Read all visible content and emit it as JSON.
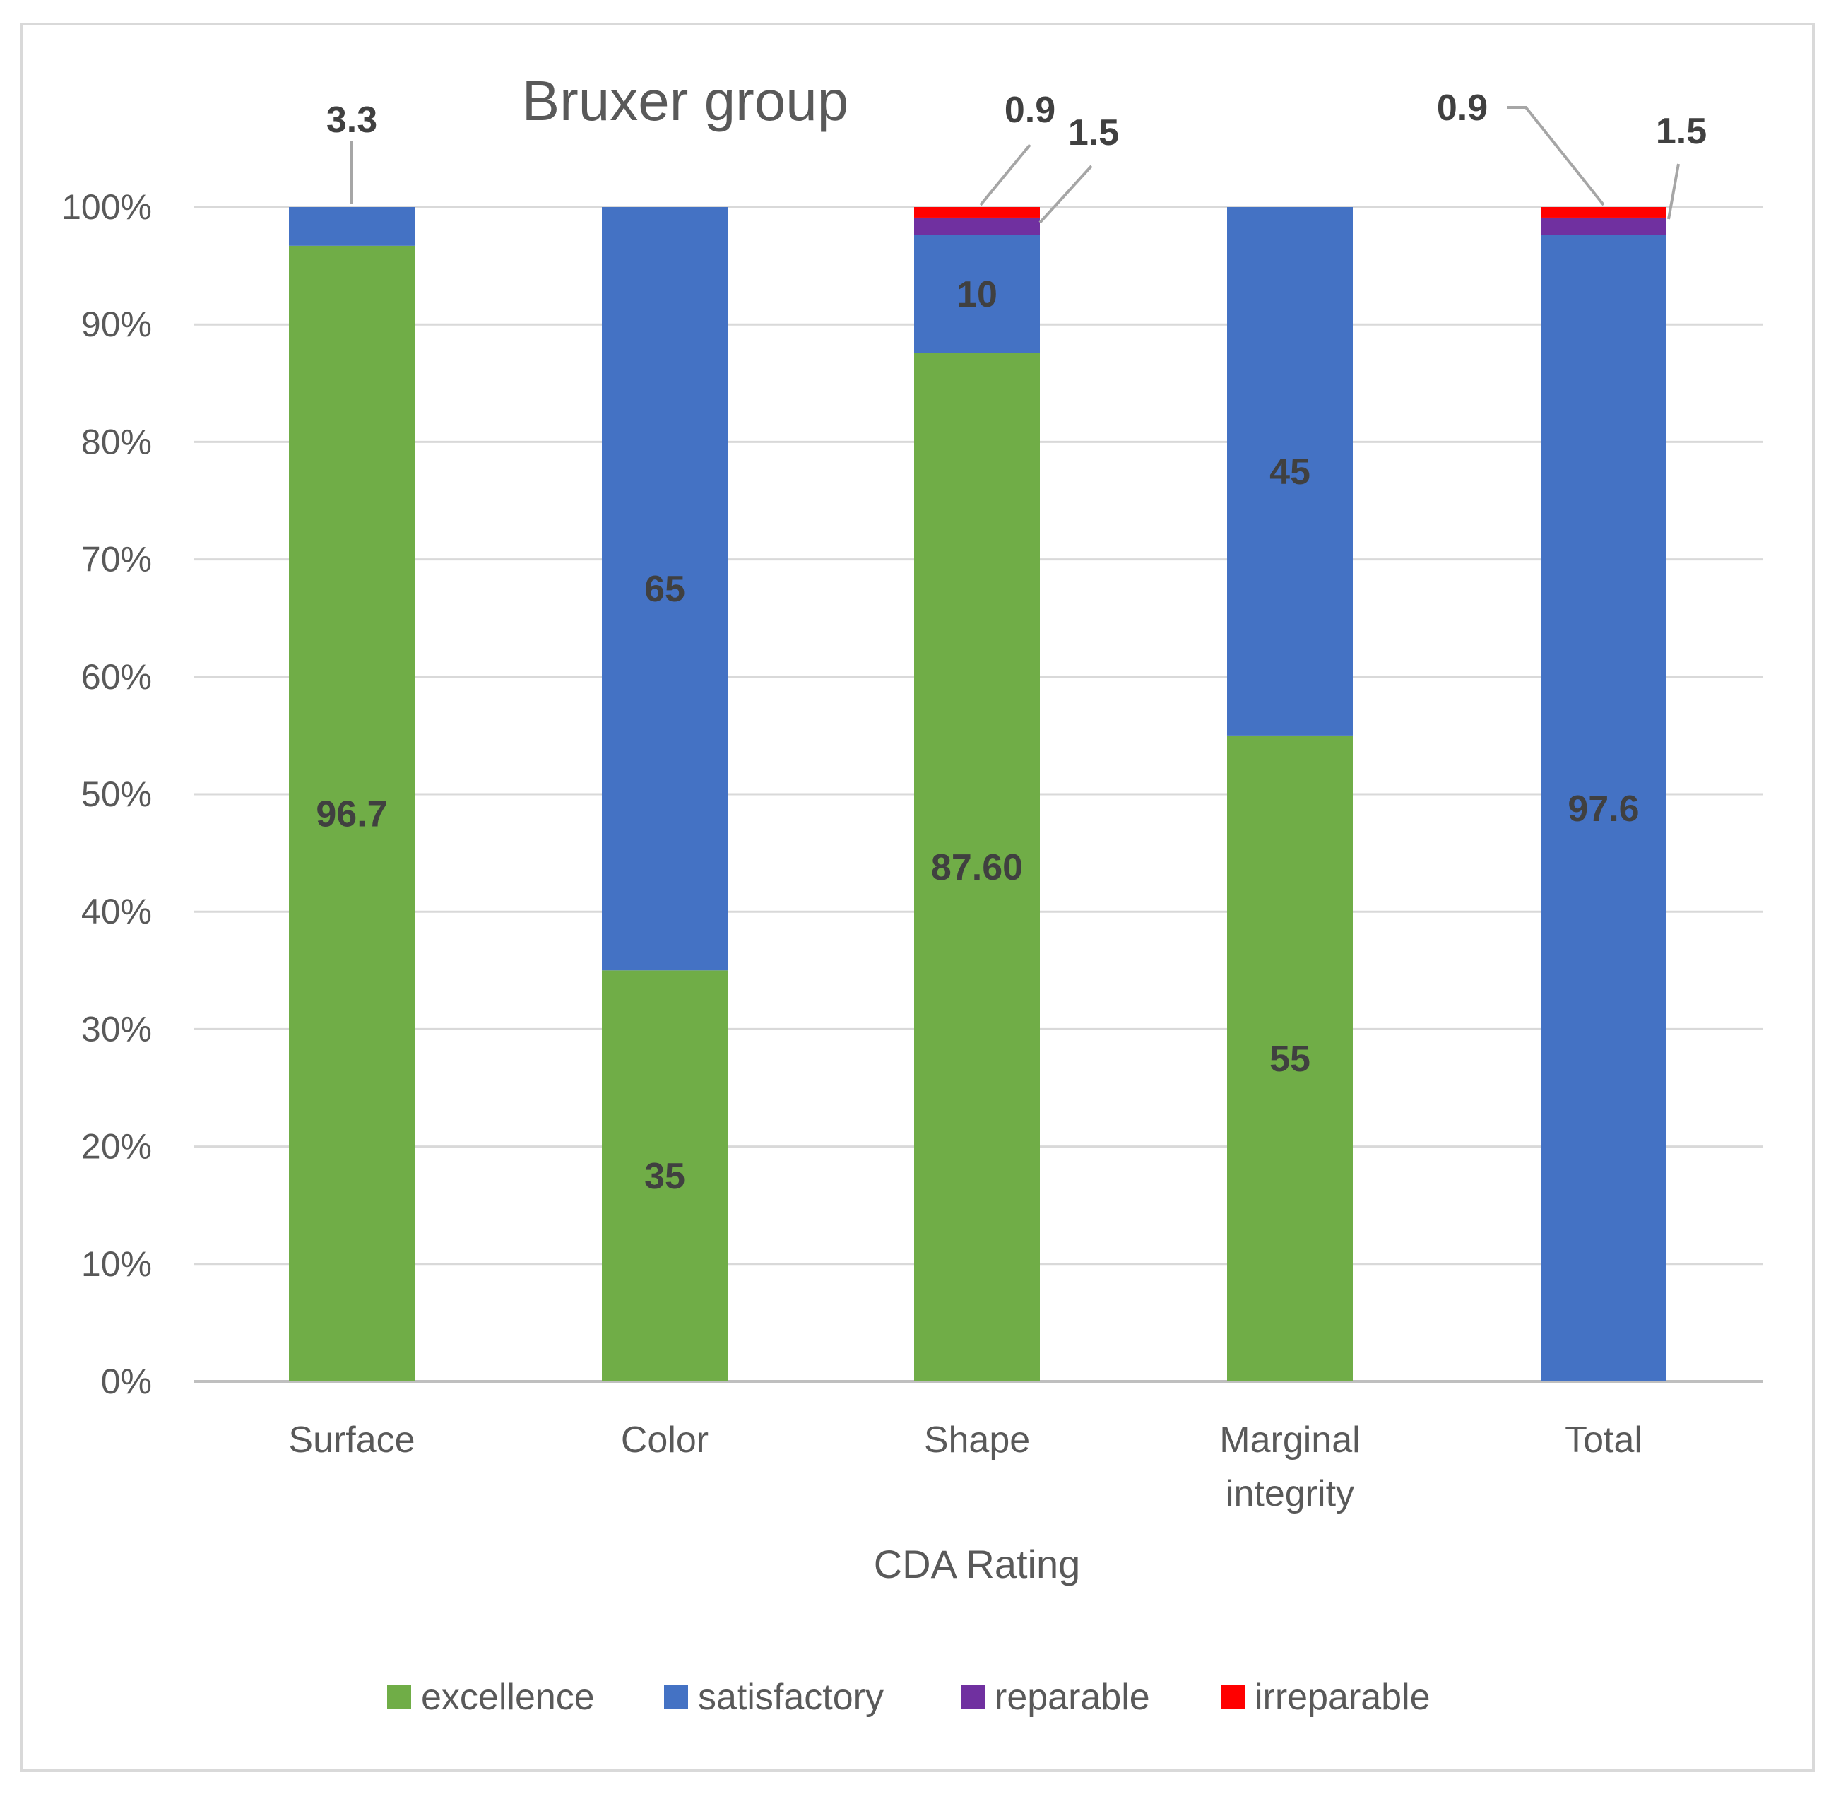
{
  "chart_data": {
    "type": "bar",
    "stacked": true,
    "title": "Bruxer group",
    "xlabel": "CDA Rating",
    "ylabel": "",
    "ylim": [
      0,
      100
    ],
    "yticks": [
      "0%",
      "10%",
      "20%",
      "30%",
      "40%",
      "50%",
      "60%",
      "70%",
      "80%",
      "90%",
      "100%"
    ],
    "categories": [
      "Surface",
      "Color",
      "Shape",
      "Marginal integrity",
      "Total"
    ],
    "series": [
      {
        "name": "excellence",
        "color": "#70ad47",
        "values": [
          96.7,
          35,
          87.6,
          55,
          0
        ]
      },
      {
        "name": "satisfactory",
        "color": "#4472c4",
        "values": [
          3.3,
          65,
          10,
          45,
          97.6
        ]
      },
      {
        "name": "reparable",
        "color": "#7030a0",
        "values": [
          0,
          0,
          1.5,
          0,
          1.5
        ]
      },
      {
        "name": "irreparable",
        "color": "#ff0000",
        "values": [
          0,
          0,
          0.9,
          0,
          0.9
        ]
      }
    ],
    "data_labels": [
      {
        "category": "Surface",
        "series": "excellence",
        "text": "96.7"
      },
      {
        "category": "Surface",
        "series": "satisfactory",
        "text": "3.3",
        "callout": true
      },
      {
        "category": "Color",
        "series": "excellence",
        "text": "35"
      },
      {
        "category": "Color",
        "series": "satisfactory",
        "text": "65"
      },
      {
        "category": "Shape",
        "series": "excellence",
        "text": "87.60"
      },
      {
        "category": "Shape",
        "series": "satisfactory",
        "text": "10"
      },
      {
        "category": "Shape",
        "series": "reparable",
        "text": "1.5",
        "callout": true
      },
      {
        "category": "Shape",
        "series": "irreparable",
        "text": "0.9",
        "callout": true
      },
      {
        "category": "Marginal integrity",
        "series": "excellence",
        "text": "55"
      },
      {
        "category": "Marginal integrity",
        "series": "satisfactory",
        "text": "45"
      },
      {
        "category": "Total",
        "series": "satisfactory",
        "text": "97.6"
      },
      {
        "category": "Total",
        "series": "reparable",
        "text": "1.5",
        "callout": true
      },
      {
        "category": "Total",
        "series": "irreparable",
        "text": "0.9",
        "callout": true
      }
    ],
    "grid": true,
    "legend": "bottom"
  }
}
